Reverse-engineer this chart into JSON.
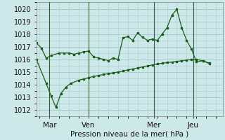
{
  "title": "Pression niveau de la mer( hPa )",
  "bg_color": "#cce8e8",
  "grid_color": "#aacccc",
  "line_color": "#1a5c1a",
  "ylim": [
    1011.5,
    1020.5
  ],
  "yticks": [
    1012,
    1013,
    1014,
    1015,
    1016,
    1017,
    1018,
    1019,
    1020
  ],
  "xtick_labels": [
    "Mar",
    "Ven",
    "Mer",
    "Jeu"
  ],
  "xtick_positions": [
    8,
    32,
    72,
    96
  ],
  "vline_positions": [
    8,
    32,
    72,
    96
  ],
  "xlim": [
    0,
    114
  ],
  "series1_x": [
    0,
    3,
    6,
    9,
    14,
    17,
    20,
    23,
    26,
    29,
    32,
    35,
    38,
    41,
    44,
    47,
    50,
    53,
    56,
    59,
    62,
    65,
    68,
    71,
    74,
    77,
    80,
    83,
    86,
    89,
    92,
    95,
    98,
    102,
    106
  ],
  "series1_y": [
    1017.3,
    1016.9,
    1016.1,
    1016.3,
    1016.5,
    1016.5,
    1016.5,
    1016.4,
    1016.5,
    1016.6,
    1016.65,
    1016.2,
    1016.1,
    1016.0,
    1015.9,
    1016.1,
    1016.0,
    1017.7,
    1017.8,
    1017.5,
    1018.1,
    1017.75,
    1017.5,
    1017.6,
    1017.5,
    1018.0,
    1018.5,
    1019.5,
    1019.95,
    1018.5,
    1017.5,
    1016.8,
    1015.8,
    1015.9,
    1015.65
  ],
  "series2_x": [
    0,
    6,
    9,
    12,
    15,
    18,
    21,
    26,
    29,
    32,
    35,
    38,
    41,
    44,
    47,
    50,
    53,
    56,
    59,
    62,
    65,
    68,
    71,
    74,
    77,
    80,
    83,
    86,
    89,
    92,
    95,
    98,
    102,
    106
  ],
  "series2_y": [
    1016.0,
    1014.1,
    1013.1,
    1012.2,
    1013.3,
    1013.8,
    1014.1,
    1014.35,
    1014.45,
    1014.55,
    1014.65,
    1014.72,
    1014.8,
    1014.87,
    1014.93,
    1015.0,
    1015.08,
    1015.16,
    1015.24,
    1015.32,
    1015.4,
    1015.48,
    1015.56,
    1015.63,
    1015.69,
    1015.74,
    1015.79,
    1015.84,
    1015.89,
    1015.94,
    1015.98,
    1016.0,
    1015.88,
    1015.7
  ]
}
